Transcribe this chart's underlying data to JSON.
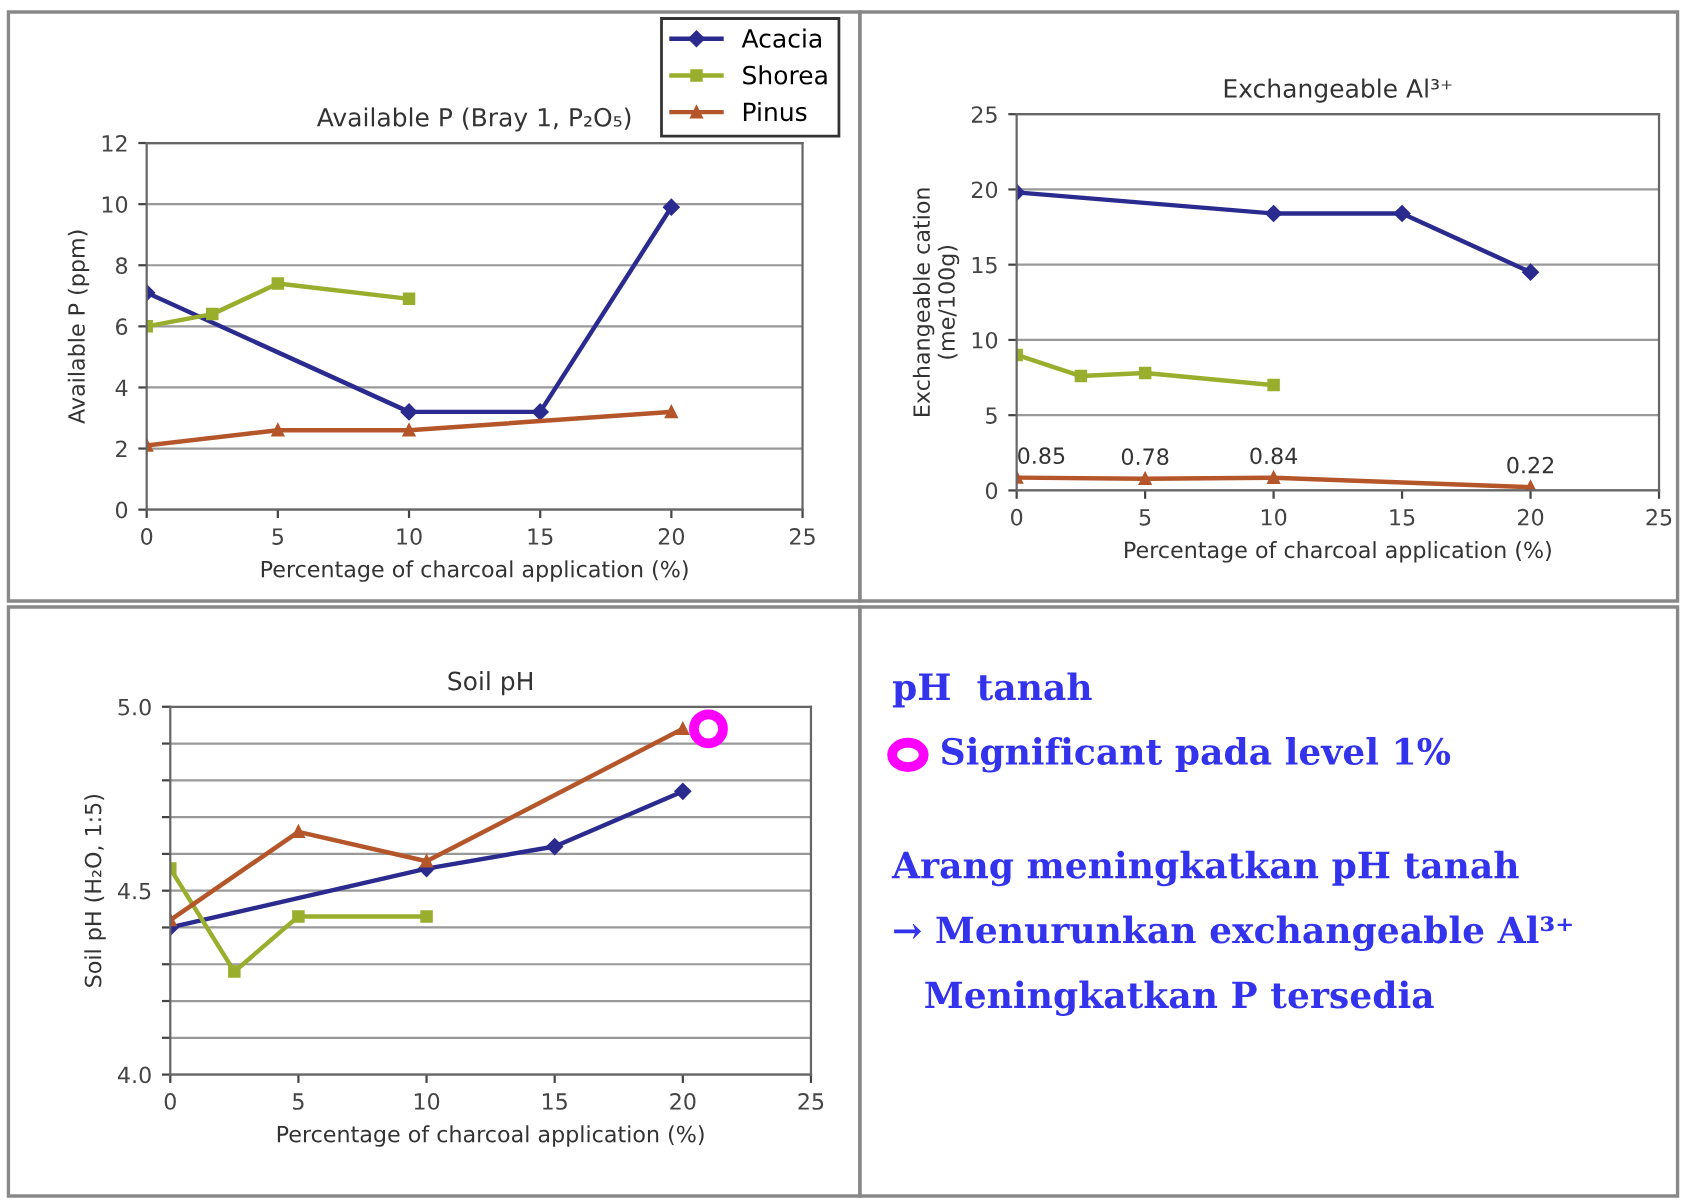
{
  "chart_data": [
    {
      "type": "line",
      "title": "Available P (Bray 1, P₂O₅)",
      "xlabel": "Percentage of charcoal application (%)",
      "ylabel": "Available P (ppm)",
      "xlim": [
        0,
        25
      ],
      "xticks": [
        0,
        5,
        10,
        15,
        20,
        25
      ],
      "ylim": [
        0,
        12
      ],
      "yticks": [
        0,
        2,
        4,
        6,
        8,
        10,
        12
      ],
      "grid": "y",
      "legend": "top right",
      "series": [
        {
          "name": "Acacia",
          "color": "#2b2b8f",
          "marker": "diamond",
          "x": [
            0,
            10,
            15,
            20
          ],
          "values": [
            7.1,
            3.2,
            3.2,
            9.9
          ]
        },
        {
          "name": "Shorea",
          "color": "#9aae2e",
          "marker": "square",
          "x": [
            0,
            2.5,
            5,
            10
          ],
          "values": [
            6.0,
            6.4,
            7.4,
            6.9
          ]
        },
        {
          "name": "Pinus",
          "color": "#b5562a",
          "marker": "triangle",
          "x": [
            0,
            5,
            10,
            20
          ],
          "values": [
            2.1,
            2.6,
            2.6,
            3.2
          ]
        }
      ]
    },
    {
      "type": "line",
      "title": "Exchangeable Al³⁺",
      "xlabel": "Percentage of charcoal application (%)",
      "ylabel": "Exchangeable cation\n(me/100g)",
      "xlim": [
        0,
        25
      ],
      "xticks": [
        0,
        5,
        10,
        15,
        20,
        25
      ],
      "ylim": [
        0,
        25
      ],
      "yticks": [
        0,
        5,
        10,
        15,
        20,
        25
      ],
      "grid": "y",
      "series": [
        {
          "color": "#2b2b8f",
          "marker": "diamond",
          "x": [
            0,
            10,
            15,
            20
          ],
          "values": [
            19.8,
            18.4,
            18.4,
            14.5
          ]
        },
        {
          "color": "#9aae2e",
          "marker": "square",
          "x": [
            0,
            2.5,
            5,
            10
          ],
          "values": [
            9.0,
            7.6,
            7.8,
            7.0
          ]
        },
        {
          "color": "#b5562a",
          "marker": "triangle",
          "x": [
            0,
            5,
            10,
            20
          ],
          "values": [
            0.85,
            0.78,
            0.84,
            0.22
          ],
          "value_labels": [
            "0.85",
            "0.78",
            "0.84",
            "0.22"
          ]
        }
      ]
    },
    {
      "type": "line",
      "title": "Soil pH",
      "xlabel": "Percentage of charcoal application (%)",
      "ylabel": "Soil pH (H₂O, 1:5)",
      "xlim": [
        0,
        25
      ],
      "xticks": [
        0,
        5,
        10,
        15,
        20,
        25
      ],
      "ylim": [
        4.0,
        5.0
      ],
      "yticks": [
        {
          "value": 4.0,
          "label": "4.0"
        },
        {
          "value": 4.1,
          "label": null
        },
        {
          "value": 4.2,
          "label": null
        },
        {
          "value": 4.3,
          "label": null
        },
        {
          "value": 4.4,
          "label": null
        },
        {
          "value": 4.5,
          "label": "4.5"
        },
        {
          "value": 4.6,
          "label": null
        },
        {
          "value": 4.7,
          "label": null
        },
        {
          "value": 4.8,
          "label": null
        },
        {
          "value": 4.9,
          "label": null
        },
        {
          "value": 5.0,
          "label": "5.0"
        }
      ],
      "grid": "y",
      "series": [
        {
          "color": "#2b2b8f",
          "marker": "diamond",
          "x": [
            0,
            10,
            15,
            20
          ],
          "values": [
            4.4,
            4.56,
            4.62,
            4.77
          ]
        },
        {
          "color": "#9aae2e",
          "marker": "square",
          "x": [
            0,
            2.5,
            5,
            10
          ],
          "values": [
            4.56,
            4.28,
            4.43,
            4.43
          ]
        },
        {
          "color": "#b5562a",
          "marker": "triangle",
          "x": [
            0,
            5,
            10,
            20
          ],
          "values": [
            4.42,
            4.66,
            4.58,
            4.94
          ]
        },
        {
          "type": "scatter",
          "color": "#ff00ff",
          "marker": "circle",
          "x": [
            21
          ],
          "values": [
            4.94
          ]
        }
      ]
    },
    {
      "type": "other",
      "annotations": [
        "pH  tanah",
        "Significant pada level 1%",
        "Arang meningkatkan pH tanah",
        "→ Menurunkan exchangeable Al³⁺",
        "Meningkatkan P tersedia"
      ]
    }
  ]
}
